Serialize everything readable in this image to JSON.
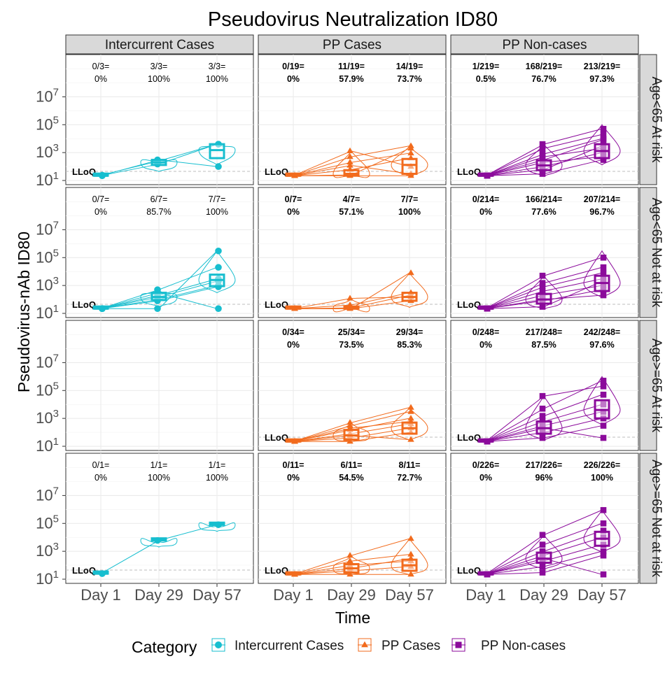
{
  "chart_data": {
    "type": "scatter",
    "title": "Pseudovirus Neutralization ID80",
    "xlabel": "Time",
    "ylabel": "Pseudovirus-nAb ID80",
    "x_categories": [
      "Day 1",
      "Day 29",
      "Day 57"
    ],
    "y_scale": "log10",
    "ylim": [
      10,
      10000000000
    ],
    "y_ticks": [
      {
        "value": 10,
        "base": "10",
        "exp": "1"
      },
      {
        "value": 1000,
        "base": "10",
        "exp": "3"
      },
      {
        "value": 100000,
        "base": "10",
        "exp": "5"
      },
      {
        "value": 10000000,
        "base": "10",
        "exp": "7"
      }
    ],
    "lloq_label": "LLoQ",
    "lloq_value": 45,
    "columns": [
      {
        "label": "Intercurrent Cases",
        "color": "#17becf",
        "marker": "circle"
      },
      {
        "label": "PP Cases",
        "color": "#f26b1d",
        "marker": "triangle"
      },
      {
        "label": "PP Non-cases",
        "color": "#8b0a9b",
        "marker": "square"
      }
    ],
    "rows": [
      {
        "label": "Age<65 At risk"
      },
      {
        "label": "Age<65 Not at risk"
      },
      {
        "label": "Age>=65 At risk"
      },
      {
        "label": "Age>=65 Not at risk"
      }
    ],
    "legend": {
      "title": "Category",
      "position": "bottom",
      "entries": [
        "Intercurrent Cases",
        "PP Cases",
        "PP Non-cases"
      ]
    },
    "grid": true,
    "panels": [
      {
        "row": 0,
        "col": 0,
        "empty": false,
        "bold_annotations": false,
        "annotations": [
          {
            "count": "0/3=",
            "pct": "0%"
          },
          {
            "count": "3/3=",
            "pct": "100%"
          },
          {
            "count": "3/3=",
            "pct": "100%"
          }
        ],
        "medians": [
          22,
          200,
          1500
        ],
        "q1": [
          22,
          130,
          400
        ],
        "q3": [
          22,
          300,
          4000
        ],
        "max": [
          26,
          400,
          5000
        ],
        "subjects": [
          [
            22,
            150,
            4000
          ],
          [
            22,
            300,
            100
          ],
          [
            24,
            250,
            4000
          ]
        ]
      },
      {
        "row": 0,
        "col": 1,
        "empty": false,
        "bold_annotations": true,
        "annotations": [
          {
            "count": "0/19=",
            "pct": "0%"
          },
          {
            "count": "11/19=",
            "pct": "57.9%"
          },
          {
            "count": "14/19=",
            "pct": "73.7%"
          }
        ],
        "medians": [
          22,
          30,
          130
        ],
        "q1": [
          22,
          22,
          30
        ],
        "q3": [
          22,
          55,
          350
        ],
        "max": [
          22,
          1300,
          3000
        ],
        "subjects": [
          [
            22,
            1300,
            100
          ],
          [
            22,
            500,
            3000
          ],
          [
            22,
            25,
            2000
          ],
          [
            22,
            120,
            30
          ],
          [
            22,
            200,
            900
          ],
          [
            22,
            60,
            400
          ],
          [
            22,
            22,
            22
          ]
        ]
      },
      {
        "row": 0,
        "col": 2,
        "empty": false,
        "bold_annotations": true,
        "annotations": [
          {
            "count": "1/219=",
            "pct": "0.5%"
          },
          {
            "count": "168/219=",
            "pct": "76.7%"
          },
          {
            "count": "213/219=",
            "pct": "97.3%"
          }
        ],
        "medians": [
          22,
          120,
          1300
        ],
        "q1": [
          22,
          55,
          400
        ],
        "q3": [
          22,
          280,
          4000
        ],
        "max": [
          24,
          4000,
          100000
        ],
        "subjects": [
          [
            22,
            4000,
            50000
          ],
          [
            22,
            2000,
            20000
          ],
          [
            22,
            800,
            10000
          ],
          [
            22,
            500,
            2000
          ],
          [
            22,
            300,
            8000
          ],
          [
            22,
            100,
            1000
          ],
          [
            22,
            60,
            3000
          ],
          [
            22,
            30,
            300
          ],
          [
            22,
            200,
            500
          ]
        ]
      },
      {
        "row": 1,
        "col": 0,
        "empty": false,
        "bold_annotations": false,
        "annotations": [
          {
            "count": "0/7=",
            "pct": "0%"
          },
          {
            "count": "6/7=",
            "pct": "85.7%"
          },
          {
            "count": "7/7=",
            "pct": "100%"
          }
        ],
        "medians": [
          22,
          150,
          2500
        ],
        "q1": [
          22,
          90,
          900
        ],
        "q3": [
          22,
          300,
          6000
        ],
        "max": [
          24,
          500,
          300000
        ],
        "subjects": [
          [
            22,
            22,
            300000
          ],
          [
            22,
            500,
            20000
          ],
          [
            22,
            200,
            3000
          ],
          [
            22,
            100,
            1000
          ],
          [
            22,
            300,
            22
          ],
          [
            22,
            150,
            2000
          ],
          [
            22,
            80,
            800
          ]
        ]
      },
      {
        "row": 1,
        "col": 1,
        "empty": false,
        "bold_annotations": true,
        "annotations": [
          {
            "count": "0/7=",
            "pct": "0%"
          },
          {
            "count": "4/7=",
            "pct": "57.1%"
          },
          {
            "count": "7/7=",
            "pct": "100%"
          }
        ],
        "medians": [
          22,
          22,
          150
        ],
        "q1": [
          22,
          22,
          80
        ],
        "q3": [
          22,
          30,
          300
        ],
        "max": [
          22,
          120,
          8000
        ],
        "subjects": [
          [
            22,
            22,
            8000
          ],
          [
            22,
            120,
            150
          ],
          [
            22,
            40,
            300
          ],
          [
            22,
            22,
            80
          ],
          [
            22,
            25,
            200
          ]
        ]
      },
      {
        "row": 1,
        "col": 2,
        "empty": false,
        "bold_annotations": true,
        "annotations": [
          {
            "count": "0/214=",
            "pct": "0%"
          },
          {
            "count": "166/214=",
            "pct": "77.6%"
          },
          {
            "count": "207/214=",
            "pct": "96.7%"
          }
        ],
        "medians": [
          22,
          100,
          1500
        ],
        "q1": [
          22,
          50,
          400
        ],
        "q3": [
          22,
          250,
          5000
        ],
        "max": [
          24,
          5000,
          300000
        ],
        "subjects": [
          [
            22,
            5000,
            100000
          ],
          [
            22,
            1500,
            20000
          ],
          [
            22,
            800,
            8000
          ],
          [
            22,
            400,
            3000
          ],
          [
            22,
            200,
            1000
          ],
          [
            22,
            80,
            500
          ],
          [
            22,
            30,
            2000
          ],
          [
            22,
            100,
            200
          ]
        ]
      },
      {
        "row": 2,
        "col": 0,
        "empty": true,
        "annotations": []
      },
      {
        "row": 2,
        "col": 1,
        "empty": false,
        "bold_annotations": true,
        "annotations": [
          {
            "count": "0/34=",
            "pct": "0%"
          },
          {
            "count": "25/34=",
            "pct": "73.5%"
          },
          {
            "count": "29/34=",
            "pct": "85.3%"
          }
        ],
        "medians": [
          22,
          60,
          200
        ],
        "q1": [
          22,
          30,
          80
        ],
        "q3": [
          22,
          150,
          500
        ],
        "max": [
          24,
          500,
          6000
        ],
        "subjects": [
          [
            22,
            500,
            6000
          ],
          [
            22,
            300,
            3000
          ],
          [
            22,
            150,
            1000
          ],
          [
            22,
            80,
            400
          ],
          [
            22,
            40,
            200
          ],
          [
            22,
            22,
            100
          ],
          [
            22,
            60,
            30
          ],
          [
            22,
            200,
            600
          ]
        ]
      },
      {
        "row": 2,
        "col": 2,
        "empty": false,
        "bold_annotations": true,
        "annotations": [
          {
            "count": "0/248=",
            "pct": "0%"
          },
          {
            "count": "217/248=",
            "pct": "87.5%"
          },
          {
            "count": "242/248=",
            "pct": "97.6%"
          }
        ],
        "medians": [
          22,
          200,
          4000
        ],
        "q1": [
          22,
          80,
          1000
        ],
        "q3": [
          22,
          600,
          20000
        ],
        "max": [
          24,
          40000,
          1000000
        ],
        "subjects": [
          [
            22,
            40000,
            200000
          ],
          [
            22,
            5000,
            500000
          ],
          [
            22,
            1500,
            50000
          ],
          [
            22,
            600,
            10000
          ],
          [
            22,
            300,
            3000
          ],
          [
            22,
            100,
            1000
          ],
          [
            22,
            40,
            300
          ],
          [
            22,
            200,
            40
          ]
        ]
      },
      {
        "row": 3,
        "col": 0,
        "empty": false,
        "bold_annotations": false,
        "annotations": [
          {
            "count": "0/1=",
            "pct": "0%"
          },
          {
            "count": "1/1=",
            "pct": "100%"
          },
          {
            "count": "1/1=",
            "pct": "100%"
          }
        ],
        "medians": [
          25,
          6000,
          80000
        ],
        "q1": [
          25,
          6000,
          80000
        ],
        "q3": [
          25,
          6000,
          80000
        ],
        "max": [
          25,
          6000,
          80000
        ],
        "subjects": [
          [
            25,
            6000,
            80000
          ]
        ]
      },
      {
        "row": 3,
        "col": 1,
        "empty": false,
        "bold_annotations": true,
        "annotations": [
          {
            "count": "0/11=",
            "pct": "0%"
          },
          {
            "count": "6/11=",
            "pct": "54.5%"
          },
          {
            "count": "8/11=",
            "pct": "72.7%"
          }
        ],
        "medians": [
          22,
          60,
          100
        ],
        "q1": [
          22,
          30,
          40
        ],
        "q3": [
          22,
          120,
          250
        ],
        "max": [
          22,
          500,
          8000
        ],
        "subjects": [
          [
            22,
            500,
            8000
          ],
          [
            22,
            200,
            600
          ],
          [
            22,
            100,
            200
          ],
          [
            22,
            40,
            80
          ],
          [
            22,
            22,
            22
          ],
          [
            22,
            60,
            300
          ]
        ]
      },
      {
        "row": 3,
        "col": 2,
        "empty": false,
        "bold_annotations": true,
        "annotations": [
          {
            "count": "0/226=",
            "pct": "0%"
          },
          {
            "count": "217/226=",
            "pct": "96%"
          },
          {
            "count": "226/226=",
            "pct": "100%"
          }
        ],
        "medians": [
          22,
          300,
          8000
        ],
        "q1": [
          22,
          150,
          2500
        ],
        "q3": [
          22,
          800,
          25000
        ],
        "max": [
          24,
          15000,
          900000
        ],
        "subjects": [
          [
            22,
            15000,
            900000
          ],
          [
            22,
            3000,
            100000
          ],
          [
            22,
            1000,
            30000
          ],
          [
            22,
            500,
            10000
          ],
          [
            22,
            200,
            3000
          ],
          [
            22,
            80,
            1000
          ],
          [
            22,
            30,
            500
          ],
          [
            22,
            300,
            22
          ]
        ]
      }
    ]
  }
}
